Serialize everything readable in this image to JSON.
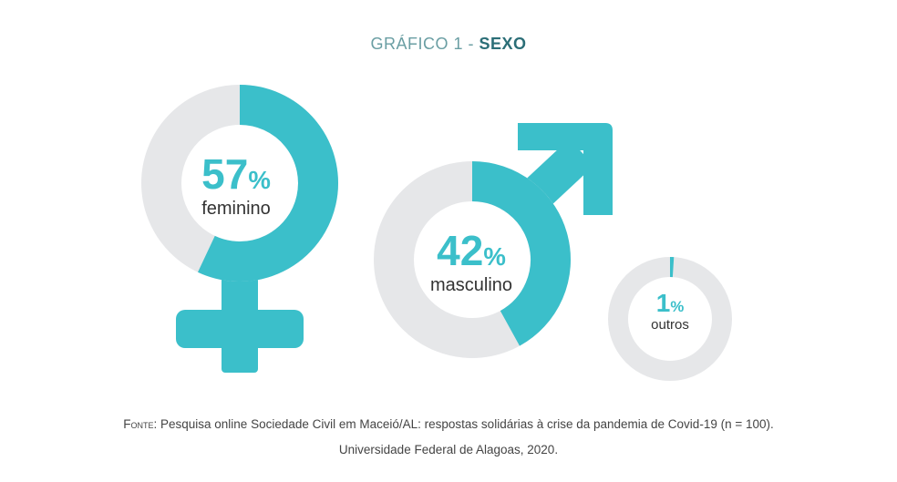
{
  "title": {
    "prefix": "GRÁFICO 1 - ",
    "main": "SEXO"
  },
  "colors": {
    "accent": "#3bbfca",
    "track": "#e6e7e9",
    "title_light": "#6a9ea3",
    "title_dark": "#2b6e77"
  },
  "chart_data": {
    "type": "pie",
    "title": "GRÁFICO 1 - SEXO",
    "unit": "%",
    "categories": [
      "feminino",
      "masculino",
      "outros"
    ],
    "values": [
      57,
      42,
      1
    ],
    "icons": [
      "female-symbol-icon",
      "male-symbol-icon",
      null
    ]
  },
  "source": {
    "label": "Fonte:",
    "line1": "Pesquisa online Sociedade Civil em Maceió/AL: respostas solidárias à crise da pandemia de Covid-19 (n = 100).",
    "line2": "Universidade Federal de Alagoas, 2020."
  }
}
